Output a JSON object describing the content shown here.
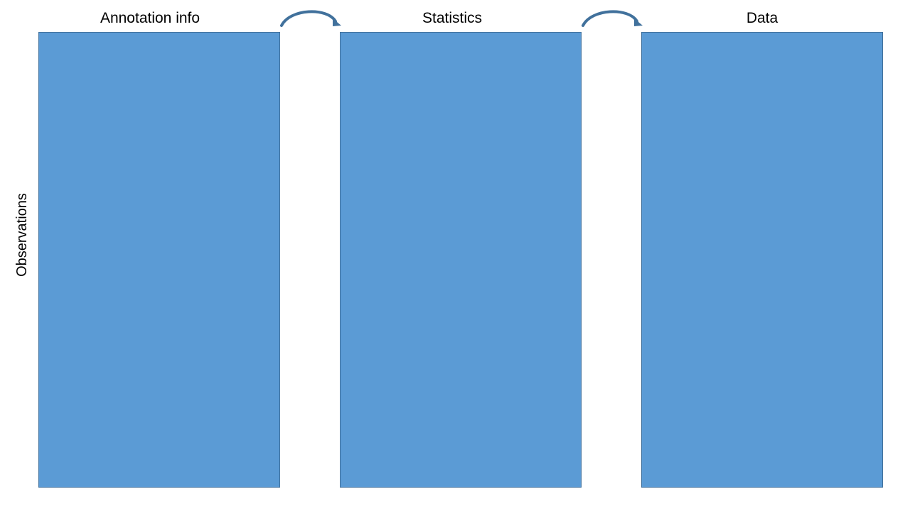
{
  "columns": [
    {
      "title": "Annotation info"
    },
    {
      "title": "Statistics"
    },
    {
      "title": "Data"
    }
  ],
  "row_label": "Observations",
  "colors": {
    "block_fill": "#5b9bd5",
    "block_border": "#41719c",
    "arrow": "#41719c",
    "text": "#000000",
    "background": "#ffffff"
  },
  "arrows": [
    {
      "from": "Annotation info",
      "to": "Statistics",
      "icon": "curved-arrow-icon"
    },
    {
      "from": "Statistics",
      "to": "Data",
      "icon": "curved-arrow-icon"
    }
  ]
}
